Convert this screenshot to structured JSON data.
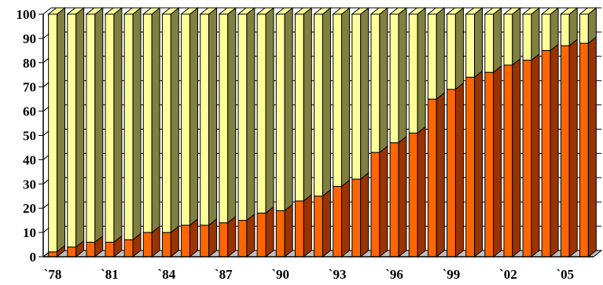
{
  "chart_data": {
    "type": "bar",
    "stacked": true,
    "three_d": true,
    "title": "",
    "xlabel": "",
    "ylabel": "",
    "ylim": [
      0,
      100
    ],
    "y_ticks": [
      0,
      10,
      20,
      30,
      40,
      50,
      60,
      70,
      80,
      90,
      100
    ],
    "x": [
      1978,
      1979,
      1980,
      1981,
      1982,
      1983,
      1984,
      1985,
      1986,
      1987,
      1988,
      1989,
      1990,
      1991,
      1992,
      1993,
      1994,
      1995,
      1996,
      1997,
      1998,
      1999,
      2000,
      2001,
      2002,
      2003,
      2004,
      2005,
      2006
    ],
    "x_tick_labels": [
      {
        "x": 1978,
        "label": "`78"
      },
      {
        "x": 1981,
        "label": "`81"
      },
      {
        "x": 1984,
        "label": "`84"
      },
      {
        "x": 1987,
        "label": "`87"
      },
      {
        "x": 1990,
        "label": "`90"
      },
      {
        "x": 1993,
        "label": "`93"
      },
      {
        "x": 1996,
        "label": "`96"
      },
      {
        "x": 1999,
        "label": "`99"
      },
      {
        "x": 2002,
        "label": "`02"
      },
      {
        "x": 2005,
        "label": "`05"
      }
    ],
    "series": [
      {
        "color": "#ff6600",
        "side_color": "#993300",
        "values": [
          2,
          4,
          6,
          6,
          7,
          10,
          10,
          13,
          13,
          14,
          15,
          18,
          19,
          23,
          25,
          29,
          32,
          43,
          47,
          51,
          65,
          69,
          74,
          76,
          79,
          81,
          85,
          87,
          88
        ]
      },
      {
        "color": "#ffff99",
        "side_color": "#808040",
        "values": [
          98,
          96,
          94,
          94,
          93,
          90,
          90,
          87,
          87,
          86,
          85,
          82,
          81,
          77,
          75,
          71,
          68,
          57,
          53,
          49,
          35,
          31,
          26,
          24,
          21,
          19,
          15,
          13,
          12
        ]
      }
    ],
    "grid": true,
    "legend": false
  }
}
